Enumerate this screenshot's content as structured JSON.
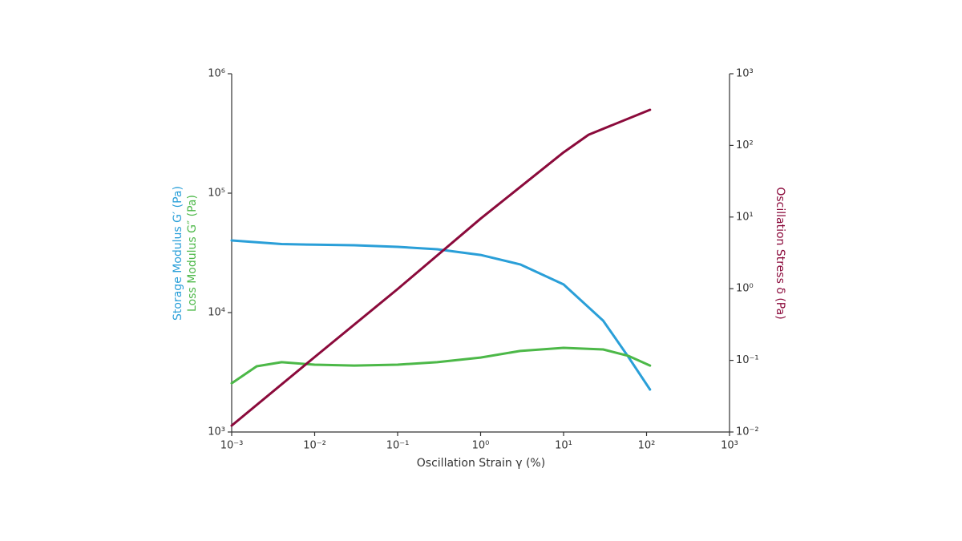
{
  "chart_data": {
    "type": "line",
    "xlabel": "Oscillation Strain γ (%)",
    "ylabels": [
      {
        "text": "Storage Modulus G′ (Pa)",
        "color": "#2a9fd8"
      },
      {
        "text": "Loss Modulus G″ (Pa)",
        "color": "#4cb848"
      }
    ],
    "y2label": {
      "text": "Oscillation Stress δ (Pa)",
      "color": "#8b0a3b"
    },
    "xscale": "log",
    "yscale": "log",
    "y2scale": "log",
    "xlim": [
      0.001,
      1000
    ],
    "ylim": [
      1000,
      1000000
    ],
    "y2lim": [
      0.01,
      1000
    ],
    "xticks": [
      {
        "value": 0.001,
        "label": "10⁻³"
      },
      {
        "value": 0.01,
        "label": "10⁻²"
      },
      {
        "value": 0.1,
        "label": "10⁻¹"
      },
      {
        "value": 1,
        "label": "10⁰"
      },
      {
        "value": 10,
        "label": "10¹"
      },
      {
        "value": 100,
        "label": "10²"
      },
      {
        "value": 1000,
        "label": "10³"
      }
    ],
    "yticks": [
      {
        "value": 1000,
        "label": "10³"
      },
      {
        "value": 10000,
        "label": "10⁴"
      },
      {
        "value": 100000,
        "label": "10⁵"
      },
      {
        "value": 1000000,
        "label": "10⁶"
      }
    ],
    "y2ticks": [
      {
        "value": 0.01,
        "label": "10⁻²"
      },
      {
        "value": 0.1,
        "label": "10⁻¹"
      },
      {
        "value": 1,
        "label": "10⁰"
      },
      {
        "value": 10,
        "label": "10¹"
      },
      {
        "value": 100,
        "label": "10²"
      },
      {
        "value": 1000,
        "label": "10³"
      }
    ],
    "series": [
      {
        "name": "Storage Modulus G′",
        "color": "#2a9fd8",
        "x": [
          0.001,
          0.002,
          0.004,
          0.01,
          0.03,
          0.1,
          0.3,
          1,
          3,
          10,
          30,
          60,
          110
        ],
        "values": [
          40200,
          38800,
          37500,
          37000,
          36600,
          35500,
          33900,
          30400,
          25300,
          17200,
          8550,
          4280,
          2270
        ]
      },
      {
        "name": "Loss Modulus G″",
        "color": "#4cb848",
        "x": [
          0.001,
          0.002,
          0.004,
          0.01,
          0.03,
          0.1,
          0.3,
          1,
          3,
          10,
          30,
          60,
          110
        ],
        "values": [
          2560,
          3550,
          3840,
          3660,
          3600,
          3660,
          3840,
          4200,
          4770,
          5070,
          4910,
          4350,
          3600
        ]
      },
      {
        "name": "Oscillation Stress δ",
        "color": "#8b0a3b",
        "axis": "y2",
        "x": [
          0.001,
          0.01,
          0.1,
          1,
          10,
          20,
          110
        ],
        "values": [
          0.0123,
          0.111,
          0.99,
          9.5,
          80,
          141,
          314
        ]
      }
    ]
  }
}
